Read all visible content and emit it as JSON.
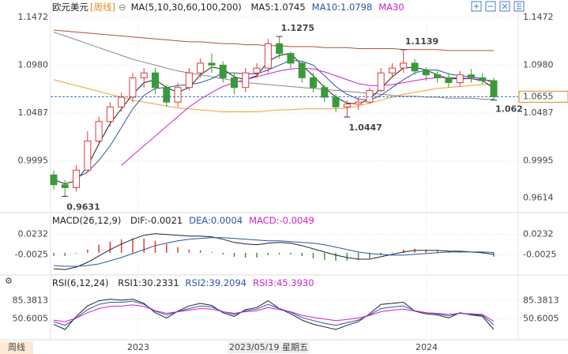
{
  "chart_data": [
    {
      "type": "candlestick",
      "title": "欧元美元",
      "period": "[周线]",
      "ma_label": "MA(5,10,30,60,100,200)",
      "open": [
        0.985,
        0.975,
        0.972,
        0.99,
        1.02,
        1.04,
        1.055,
        1.065,
        1.085,
        1.09,
        1.075,
        1.06,
        1.075,
        1.09,
        1.1,
        1.098,
        1.085,
        1.075,
        1.09,
        1.095,
        1.12,
        1.11,
        1.1,
        1.085,
        1.075,
        1.065,
        1.055,
        1.058,
        1.06,
        1.072,
        1.09,
        1.095,
        1.1,
        1.092,
        1.088,
        1.085,
        1.08,
        1.088,
        1.085,
        1.082
      ],
      "high": [
        0.99,
        0.98,
        0.995,
        1.03,
        1.045,
        1.06,
        1.07,
        1.09,
        1.095,
        1.095,
        1.078,
        1.08,
        1.095,
        1.105,
        1.11,
        1.102,
        1.09,
        1.095,
        1.1,
        1.125,
        1.1275,
        1.112,
        1.102,
        1.09,
        1.078,
        1.068,
        1.062,
        1.065,
        1.075,
        1.095,
        1.1,
        1.1139,
        1.104,
        1.096,
        1.092,
        1.09,
        1.092,
        1.094,
        1.09,
        1.085
      ],
      "low": [
        0.97,
        0.9631,
        0.968,
        0.988,
        1.015,
        1.035,
        1.05,
        1.06,
        1.075,
        1.068,
        1.055,
        1.055,
        1.072,
        1.085,
        1.09,
        1.08,
        1.068,
        1.07,
        1.085,
        1.09,
        1.105,
        1.095,
        1.08,
        1.07,
        1.06,
        1.05,
        1.0447,
        1.052,
        1.058,
        1.07,
        1.085,
        1.09,
        1.088,
        1.082,
        1.08,
        1.075,
        1.076,
        1.08,
        1.078,
        1.062
      ],
      "close": [
        0.975,
        0.972,
        0.99,
        1.02,
        1.04,
        1.055,
        1.065,
        1.085,
        1.09,
        1.075,
        1.06,
        1.075,
        1.09,
        1.1,
        1.098,
        1.085,
        1.075,
        1.09,
        1.095,
        1.12,
        1.11,
        1.1,
        1.085,
        1.075,
        1.065,
        1.055,
        1.058,
        1.06,
        1.072,
        1.09,
        1.095,
        1.1,
        1.092,
        1.088,
        1.085,
        1.08,
        1.088,
        1.085,
        1.082,
        1.0655
      ],
      "up_color": "#e03a3a",
      "down_color": "#3a9a3a",
      "series": [
        {
          "name": "MA5:1.0745",
          "color": "#222222",
          "values": [
            0.98,
            0.976,
            0.979,
            0.994,
            1.017,
            1.038,
            1.053,
            1.068,
            1.08,
            1.083,
            1.075,
            1.07,
            1.075,
            1.088,
            1.096,
            1.094,
            1.086,
            1.083,
            1.087,
            1.102,
            1.108,
            1.11,
            1.098,
            1.087,
            1.075,
            1.065,
            1.059,
            1.058,
            1.063,
            1.074,
            1.086,
            1.095,
            1.096,
            1.093,
            1.088,
            1.084,
            1.084,
            1.084,
            1.082,
            1.0745
          ]
        },
        {
          "name": "MA10:1.0798",
          "color": "#2a55a8",
          "values": [
            null,
            null,
            0.982,
            0.988,
            1.0,
            1.015,
            1.034,
            1.053,
            1.067,
            1.074,
            1.075,
            1.077,
            1.078,
            1.08,
            1.084,
            1.09,
            1.09,
            1.089,
            1.089,
            1.093,
            1.098,
            1.103,
            1.102,
            1.098,
            1.087,
            1.076,
            1.068,
            1.063,
            1.062,
            1.067,
            1.075,
            1.083,
            1.09,
            1.093,
            1.093,
            1.089,
            1.087,
            1.086,
            1.084,
            1.0798
          ]
        },
        {
          "name": "MA30",
          "color": "#d020d0",
          "values": [
            null,
            null,
            null,
            null,
            null,
            null,
            0.995,
            1.005,
            1.015,
            1.025,
            1.035,
            1.045,
            1.055,
            1.063,
            1.07,
            1.076,
            1.08,
            1.083,
            1.086,
            1.089,
            1.092,
            1.094,
            1.095,
            1.094,
            1.091,
            1.087,
            1.083,
            1.079,
            1.077,
            1.077,
            1.078,
            1.08,
            1.082,
            1.084,
            1.085,
            1.085,
            1.085,
            1.084,
            1.083,
            1.082
          ]
        }
      ],
      "lines": [
        {
          "color": "#f0a030",
          "values": [
            1.083,
            1.08,
            1.077,
            1.074,
            1.071,
            1.068,
            1.065,
            1.062,
            1.06,
            1.058,
            1.056,
            1.054,
            1.053,
            1.052,
            1.051,
            1.05,
            1.05,
            1.05,
            1.05,
            1.051,
            1.052,
            1.052,
            1.053,
            1.053,
            1.053,
            1.053,
            1.054,
            1.056,
            1.059,
            1.062,
            1.065,
            1.068,
            1.07,
            1.072,
            1.074,
            1.075,
            1.076,
            1.077,
            1.078,
            1.078
          ]
        },
        {
          "color": "#8a8a8a",
          "values": [
            1.132,
            1.128,
            1.124,
            1.12,
            1.116,
            1.112,
            1.108,
            1.104,
            1.101,
            1.098,
            1.095,
            1.092,
            1.09,
            1.088,
            1.086,
            1.084,
            1.082,
            1.08,
            1.079,
            1.078,
            1.077,
            1.076,
            1.075,
            1.074,
            1.073,
            1.072,
            1.071,
            1.07,
            1.069,
            1.068,
            1.067,
            1.066,
            1.066,
            1.065,
            1.065,
            1.064,
            1.064,
            1.064,
            1.063,
            1.063
          ]
        },
        {
          "color": "#b05040",
          "values": [
            1.134,
            1.133,
            1.132,
            1.131,
            1.13,
            1.129,
            1.128,
            1.127,
            1.126,
            1.125,
            1.124,
            1.123,
            1.122,
            1.122,
            1.121,
            1.12,
            1.12,
            1.119,
            1.119,
            1.118,
            1.118,
            1.117,
            1.117,
            1.117,
            1.116,
            1.116,
            1.116,
            1.115,
            1.115,
            1.115,
            1.115,
            1.114,
            1.114,
            1.114,
            1.114,
            1.113,
            1.113,
            1.113,
            1.113,
            1.113
          ]
        }
      ],
      "ylim": [
        0.9488,
        1.1536
      ],
      "yticks": [
        1.1472,
        {
          "value": 1.098,
          "label": "1.0980"
        },
        1.0487,
        0.9995
      ],
      "right_ticks": [
        1.1472,
        {
          "value": 1.098,
          "label": "1.0980"
        },
        1.0487,
        0.9995,
        0.9614
      ],
      "last_price": 1.0655,
      "last_price_color": "#e08a20"
    },
    {
      "type": "macd",
      "title": "MACD(26,12,9)",
      "series": [
        {
          "name": "DIF:-0.0021",
          "color": "#222222",
          "values": [
            -0.02,
            -0.021,
            -0.018,
            -0.012,
            -0.004,
            0.004,
            0.011,
            0.017,
            0.022,
            0.024,
            0.023,
            0.022,
            0.021,
            0.021,
            0.02,
            0.017,
            0.013,
            0.011,
            0.01,
            0.012,
            0.013,
            0.012,
            0.009,
            0.005,
            0.001,
            -0.003,
            -0.006,
            -0.008,
            -0.008,
            -0.005,
            -0.002,
            0.001,
            0.003,
            0.003,
            0.003,
            0.002,
            0.002,
            0.001,
            0.0,
            -0.0021
          ]
        },
        {
          "name": "DEA:0.0004",
          "color": "#2a55a8",
          "values": [
            -0.016,
            -0.017,
            -0.017,
            -0.016,
            -0.014,
            -0.01,
            -0.006,
            -0.001,
            0.004,
            0.009,
            0.012,
            0.015,
            0.017,
            0.018,
            0.019,
            0.019,
            0.018,
            0.017,
            0.016,
            0.015,
            0.015,
            0.014,
            0.013,
            0.012,
            0.01,
            0.007,
            0.004,
            0.001,
            -0.001,
            -0.002,
            -0.003,
            -0.003,
            -0.002,
            -0.001,
            0.0,
            0.001,
            0.001,
            0.001,
            0.001,
            0.0004
          ]
        }
      ],
      "histogram": {
        "name": "MACD:-0.0049",
        "color": "#d020d0",
        "values": [
          -0.004,
          -0.004,
          -0.001,
          0.004,
          0.01,
          0.014,
          0.017,
          0.018,
          0.018,
          0.015,
          0.011,
          0.007,
          0.004,
          0.003,
          0.001,
          -0.002,
          -0.005,
          -0.006,
          -0.006,
          -0.003,
          -0.002,
          -0.002,
          -0.004,
          -0.007,
          -0.009,
          -0.01,
          -0.01,
          -0.009,
          -0.007,
          -0.003,
          0.001,
          0.004,
          0.005,
          0.004,
          0.003,
          0.001,
          0.001,
          0.0,
          -0.001,
          -0.0049
        ]
      },
      "up_color": "#e03a3a",
      "down_color": "#3a9a3a",
      "ylim": [
        -0.0249,
        0.0356
      ],
      "yticks": [
        0.0232,
        -0.0025
      ]
    },
    {
      "type": "rsi",
      "title": "RSI(6,12,24)",
      "series": [
        {
          "name": "RSI1:30.2331",
          "color": "#222222",
          "values": [
            40,
            30,
            55,
            75,
            85,
            88,
            86,
            88,
            80,
            62,
            52,
            65,
            75,
            80,
            76,
            62,
            55,
            68,
            72,
            85,
            70,
            60,
            48,
            40,
            35,
            30,
            38,
            45,
            60,
            78,
            80,
            82,
            65,
            60,
            58,
            52,
            62,
            58,
            55,
            30.2331
          ]
        },
        {
          "name": "RSI2:39.2094",
          "color": "#2a55a8",
          "values": [
            45,
            38,
            52,
            68,
            78,
            82,
            82,
            84,
            78,
            65,
            58,
            64,
            70,
            75,
            73,
            64,
            59,
            66,
            69,
            78,
            70,
            63,
            53,
            47,
            42,
            38,
            43,
            48,
            58,
            70,
            73,
            75,
            66,
            62,
            60,
            56,
            61,
            59,
            57,
            39.2094
          ]
        },
        {
          "name": "RSI3:45.3930",
          "color": "#d020d0",
          "values": [
            48,
            45,
            52,
            62,
            70,
            74,
            75,
            77,
            74,
            66,
            61,
            64,
            67,
            70,
            69,
            64,
            61,
            64,
            66,
            72,
            68,
            64,
            57,
            53,
            50,
            47,
            49,
            52,
            57,
            64,
            67,
            69,
            65,
            62,
            61,
            59,
            61,
            60,
            59,
            45.393
          ]
        }
      ],
      "ylim": [
        13.43,
        106.96
      ],
      "yticks": [
        85.3813,
        50.6005
      ]
    }
  ],
  "footer": {
    "period_tab": "周线",
    "time_labels": [
      "2023",
      "2023/05/19 星期五",
      "2024"
    ]
  }
}
